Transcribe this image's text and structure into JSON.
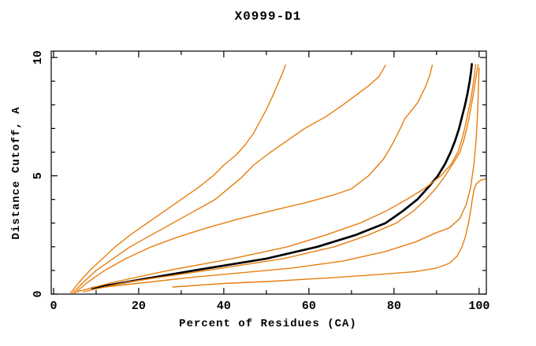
{
  "figure": {
    "background": "#ffffff",
    "text_color": "#000000"
  },
  "chart_data": {
    "type": "line",
    "title": "X0999-D1",
    "xlabel": "Percent of Residues (CA)",
    "ylabel": "Distance Cutoff, A",
    "xlim": [
      -0.55,
      101.7
    ],
    "ylim": [
      0,
      10.27
    ],
    "grid": false,
    "legend": null,
    "axis_color": "#000000",
    "x_ticks": {
      "minor_step": 10,
      "major_step": 20,
      "labels": [
        0,
        20,
        40,
        60,
        80,
        100
      ]
    },
    "y_ticks": {
      "minor_step": 1,
      "major_step": 5,
      "labels": [
        0,
        5,
        10
      ]
    },
    "series": [
      {
        "name": "orange-curve-1",
        "color": "#e87d0e",
        "width": 1.4,
        "points": [
          [
            4,
            0.05
          ],
          [
            6,
            0.5
          ],
          [
            8.5,
            1
          ],
          [
            11.5,
            1.5
          ],
          [
            14.5,
            2
          ],
          [
            18,
            2.5
          ],
          [
            22,
            3
          ],
          [
            26,
            3.5
          ],
          [
            30,
            4
          ],
          [
            34,
            4.5
          ],
          [
            37.5,
            5
          ],
          [
            40,
            5.45
          ],
          [
            43,
            5.9
          ],
          [
            45,
            6.3
          ],
          [
            47,
            6.8
          ],
          [
            48.5,
            7.3
          ],
          [
            50,
            7.8
          ],
          [
            51.3,
            8.3
          ],
          [
            52.5,
            8.8
          ],
          [
            53.7,
            9.3
          ],
          [
            54.5,
            9.68
          ]
        ]
      },
      {
        "name": "orange-curve-2",
        "color": "#e87d0e",
        "width": 1.4,
        "points": [
          [
            4.5,
            0.05
          ],
          [
            7,
            0.5
          ],
          [
            10,
            1
          ],
          [
            14,
            1.5
          ],
          [
            18,
            2
          ],
          [
            23,
            2.5
          ],
          [
            28,
            3
          ],
          [
            33,
            3.5
          ],
          [
            38,
            4
          ],
          [
            41,
            4.45
          ],
          [
            44,
            4.9
          ],
          [
            47,
            5.45
          ],
          [
            51,
            6
          ],
          [
            55,
            6.5
          ],
          [
            59,
            7
          ],
          [
            64,
            7.5
          ],
          [
            68,
            8
          ],
          [
            71,
            8.4
          ],
          [
            74,
            8.8
          ],
          [
            76.5,
            9.2
          ],
          [
            78,
            9.68
          ]
        ]
      },
      {
        "name": "orange-curve-3",
        "color": "#e87d0e",
        "width": 1.4,
        "points": [
          [
            5,
            0.05
          ],
          [
            8,
            0.5
          ],
          [
            12,
            1
          ],
          [
            17,
            1.5
          ],
          [
            23,
            2
          ],
          [
            29,
            2.4
          ],
          [
            36,
            2.8
          ],
          [
            44,
            3.2
          ],
          [
            53,
            3.6
          ],
          [
            60,
            3.9
          ],
          [
            66,
            4.2
          ],
          [
            70,
            4.45
          ],
          [
            74,
            5
          ],
          [
            77.5,
            5.7
          ],
          [
            79.5,
            6.3
          ],
          [
            81.5,
            7
          ],
          [
            82.5,
            7.4
          ],
          [
            85.6,
            8.1
          ],
          [
            87.5,
            8.8
          ],
          [
            88.5,
            9.3
          ],
          [
            89,
            9.68
          ]
        ]
      },
      {
        "name": "black-curve",
        "color": "#000000",
        "width": 2.7,
        "points": [
          [
            9,
            0.25
          ],
          [
            20,
            0.6
          ],
          [
            33,
            1
          ],
          [
            50,
            1.5
          ],
          [
            62,
            2
          ],
          [
            71,
            2.5
          ],
          [
            78,
            3
          ],
          [
            82,
            3.5
          ],
          [
            85.5,
            4
          ],
          [
            88,
            4.5
          ],
          [
            90.3,
            5
          ],
          [
            92,
            5.5
          ],
          [
            93.3,
            6
          ],
          [
            94.4,
            6.5
          ],
          [
            95.3,
            7
          ],
          [
            96,
            7.5
          ],
          [
            96.7,
            8
          ],
          [
            97.3,
            8.5
          ],
          [
            97.8,
            9
          ],
          [
            98.1,
            9.4
          ],
          [
            98.3,
            9.72
          ]
        ]
      },
      {
        "name": "orange-curve-4",
        "color": "#e87d0e",
        "width": 1.4,
        "points": [
          [
            5.5,
            0.1
          ],
          [
            14,
            0.5
          ],
          [
            27,
            1
          ],
          [
            42,
            1.5
          ],
          [
            55,
            2
          ],
          [
            64,
            2.5
          ],
          [
            72,
            3
          ],
          [
            78,
            3.5
          ],
          [
            83,
            4
          ],
          [
            87.5,
            4.5
          ],
          [
            91,
            5
          ],
          [
            93.5,
            5.5
          ],
          [
            95,
            6
          ],
          [
            95.9,
            6.5
          ],
          [
            96.6,
            7
          ],
          [
            97.2,
            7.5
          ],
          [
            97.8,
            8
          ],
          [
            98.3,
            8.5
          ],
          [
            98.7,
            9
          ],
          [
            99,
            9.4
          ],
          [
            99.2,
            9.7
          ]
        ]
      },
      {
        "name": "orange-curve-5",
        "color": "#e87d0e",
        "width": 1.4,
        "points": [
          [
            7,
            0.1
          ],
          [
            17,
            0.5
          ],
          [
            36,
            1
          ],
          [
            54,
            1.5
          ],
          [
            66,
            2
          ],
          [
            74,
            2.5
          ],
          [
            80.5,
            3
          ],
          [
            84.5,
            3.5
          ],
          [
            87.5,
            4
          ],
          [
            90,
            4.5
          ],
          [
            92,
            5
          ],
          [
            93.8,
            5.5
          ],
          [
            95.5,
            6
          ],
          [
            96.4,
            6.5
          ],
          [
            97.1,
            7
          ],
          [
            97.7,
            7.5
          ],
          [
            98.2,
            8
          ],
          [
            98.7,
            8.5
          ],
          [
            99.1,
            9
          ],
          [
            99.5,
            9.4
          ],
          [
            99.8,
            9.7
          ]
        ]
      },
      {
        "name": "orange-curve-6",
        "color": "#e87d0e",
        "width": 1.4,
        "points": [
          [
            12,
            0.3
          ],
          [
            22,
            0.5
          ],
          [
            32,
            0.7
          ],
          [
            44,
            0.9
          ],
          [
            56,
            1.1
          ],
          [
            68,
            1.4
          ],
          [
            78,
            1.8
          ],
          [
            85,
            2.2
          ],
          [
            90,
            2.6
          ],
          [
            93,
            2.8
          ],
          [
            95.5,
            3.2
          ],
          [
            97,
            3.8
          ],
          [
            98,
            4.5
          ],
          [
            98.8,
            5.5
          ],
          [
            99.3,
            6.5
          ],
          [
            99.6,
            7.5
          ],
          [
            99.8,
            8.5
          ],
          [
            100,
            9.55
          ]
        ]
      },
      {
        "name": "orange-curve-7",
        "color": "#e87d0e",
        "width": 1.4,
        "points": [
          [
            28,
            0.3
          ],
          [
            40,
            0.45
          ],
          [
            52,
            0.55
          ],
          [
            66,
            0.7
          ],
          [
            78,
            0.85
          ],
          [
            85,
            0.95
          ],
          [
            90,
            1.1
          ],
          [
            93,
            1.3
          ],
          [
            94.8,
            1.6
          ],
          [
            96,
            2
          ],
          [
            96.9,
            2.5
          ],
          [
            97.5,
            3
          ],
          [
            98,
            3.5
          ],
          [
            98.4,
            4
          ],
          [
            98.8,
            4.4
          ],
          [
            99.3,
            4.65
          ],
          [
            100.2,
            4.8
          ],
          [
            101.7,
            4.88
          ]
        ]
      }
    ]
  }
}
